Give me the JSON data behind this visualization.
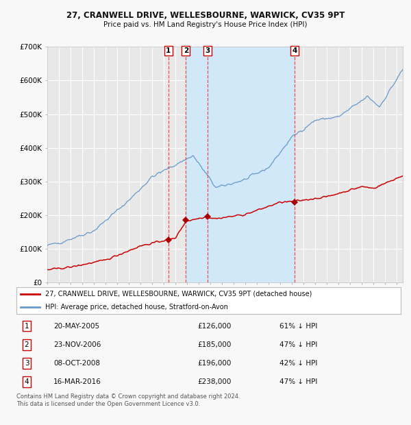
{
  "title1": "27, CRANWELL DRIVE, WELLESBOURNE, WARWICK, CV35 9PT",
  "title2": "Price paid vs. HM Land Registry's House Price Index (HPI)",
  "ylim": [
    0,
    700000
  ],
  "yticks": [
    0,
    100000,
    200000,
    300000,
    400000,
    500000,
    600000,
    700000
  ],
  "ytick_labels": [
    "£0",
    "£100K",
    "£200K",
    "£300K",
    "£400K",
    "£500K",
    "£600K",
    "£700K"
  ],
  "xlim_start": 1995.0,
  "xlim_end": 2025.5,
  "background_color": "#f8f8f8",
  "plot_bg_color": "#e8e8e8",
  "grid_color": "#ffffff",
  "transactions": [
    {
      "num": 1,
      "date_x": 2005.38,
      "price": 126000,
      "label": "20-MAY-2005",
      "price_str": "£126,000",
      "pct_str": "61% ↓ HPI"
    },
    {
      "num": 2,
      "date_x": 2006.89,
      "price": 185000,
      "label": "23-NOV-2006",
      "price_str": "£185,000",
      "pct_str": "47% ↓ HPI"
    },
    {
      "num": 3,
      "date_x": 2008.77,
      "price": 196000,
      "label": "08-OCT-2008",
      "price_str": "£196,000",
      "pct_str": "42% ↓ HPI"
    },
    {
      "num": 4,
      "date_x": 2016.21,
      "price": 238000,
      "label": "16-MAR-2016",
      "price_str": "£238,000",
      "pct_str": "47% ↓ HPI"
    }
  ],
  "shade_start": 2006.89,
  "shade_end": 2016.21,
  "shade_color": "#d0e8f8",
  "red_line_color": "#cc0000",
  "blue_line_color": "#6699cc",
  "marker_color": "#aa0000",
  "vline_color": "#ee3333",
  "legend_label_red": "27, CRANWELL DRIVE, WELLESBOURNE, WARWICK, CV35 9PT (detached house)",
  "legend_label_blue": "HPI: Average price, detached house, Stratford-on-Avon",
  "footnote1": "Contains HM Land Registry data © Crown copyright and database right 2024.",
  "footnote2": "This data is licensed under the Open Government Licence v3.0."
}
